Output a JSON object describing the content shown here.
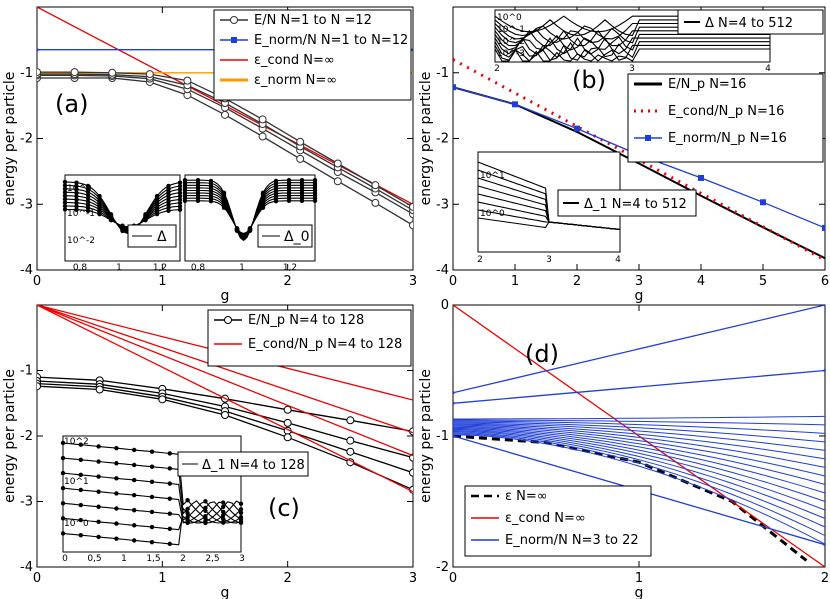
{
  "figure_title": "",
  "chart_data": [
    {
      "type": "line",
      "panel_label": "(a)",
      "xlabel": "g",
      "ylabel": "energy per particle",
      "xlim": [
        0,
        3
      ],
      "ylim": [
        -4,
        0
      ],
      "xticks": [
        "0",
        "1",
        "2",
        "3"
      ],
      "yticks": [
        "-4",
        "-3",
        "-2",
        "-1"
      ],
      "legend": [
        "E/N       N=1 to N =12",
        "E_norm/N N=1 to N=12",
        "ε_cond N=∞",
        "ε_norm N=∞"
      ],
      "series": [
        {
          "name": "ε_cond N=∞",
          "color": "#ee0000",
          "x": [
            0,
            3
          ],
          "y": [
            0,
            -3.0
          ]
        },
        {
          "name": "ε_norm N=∞",
          "color": "#ff9900",
          "x": [
            0,
            3
          ],
          "y": [
            -1.0,
            -1.0
          ]
        },
        {
          "name": "E/N N=1",
          "color": "#333333",
          "x": [
            0,
            0.3,
            0.6,
            0.9,
            1.2,
            1.5,
            1.8,
            2.1,
            2.4,
            2.7,
            3.0
          ],
          "y": [
            -1.08,
            -1.08,
            -1.08,
            -1.14,
            -1.34,
            -1.64,
            -1.97,
            -2.31,
            -2.65,
            -2.98,
            -3.32
          ]
        },
        {
          "name": "E/N N=2",
          "color": "#333333",
          "x": [
            0,
            0.3,
            0.6,
            0.9,
            1.2,
            1.5,
            1.8,
            2.1,
            2.4,
            2.7,
            3.0
          ],
          "y": [
            -1.04,
            -1.04,
            -1.05,
            -1.09,
            -1.25,
            -1.53,
            -1.85,
            -2.18,
            -2.51,
            -2.82,
            -3.15
          ]
        },
        {
          "name": "E/N N=3",
          "color": "#333333",
          "x": [
            0,
            0.3,
            0.6,
            0.9,
            1.2,
            1.5,
            1.8,
            2.1,
            2.4,
            2.7,
            3.0
          ],
          "y": [
            -1.02,
            -1.02,
            -1.03,
            -1.06,
            -1.19,
            -1.46,
            -1.78,
            -2.12,
            -2.44,
            -2.76,
            -3.09
          ]
        },
        {
          "name": "E/N N=12",
          "color": "#333333",
          "x": [
            0,
            0.3,
            0.6,
            0.9,
            1.2,
            1.5,
            1.8,
            2.1,
            2.4,
            2.7,
            3.0
          ],
          "y": [
            -0.99,
            -0.99,
            -1.0,
            -1.02,
            -1.12,
            -1.39,
            -1.71,
            -2.05,
            -2.38,
            -2.71,
            -3.04
          ]
        },
        {
          "name": "E_norm/N",
          "color": "#1f3fd8",
          "x": [
            0,
            3
          ],
          "y": [
            -0.65,
            -0.65
          ]
        }
      ],
      "inset_left": {
        "xticks": [
          "0,8",
          "1",
          "1,2"
        ],
        "yticks": [
          "10^0",
          "10^-1",
          "10^-2"
        ],
        "legend": "Δ"
      },
      "inset_right": {
        "xticks": [
          "0,8",
          "1",
          "1,2"
        ],
        "legend": "Δ_0"
      }
    },
    {
      "type": "line",
      "panel_label": "(b)",
      "xlabel": "g",
      "ylabel": "energy per particle",
      "xlim": [
        0,
        6
      ],
      "ylim": [
        -4,
        0
      ],
      "xticks": [
        "0",
        "1",
        "2",
        "3",
        "4",
        "5",
        "6"
      ],
      "yticks": [
        "-4",
        "-3",
        "-2",
        "-1"
      ],
      "legend": [
        "E/N_p     N=16",
        "E_cond/N_p N=16",
        "E_norm/N_p N=16"
      ],
      "series": [
        {
          "name": "E/N_p N=16",
          "color": "#000000",
          "x": [
            0,
            1,
            2,
            3,
            4,
            5,
            6
          ],
          "y": [
            -1.22,
            -1.48,
            -1.9,
            -2.38,
            -2.87,
            -3.35,
            -3.82
          ]
        },
        {
          "name": "E_cond/N_p N=16",
          "color": "#ee0000",
          "x": [
            0,
            6
          ],
          "y": [
            -0.8,
            -3.85
          ]
        },
        {
          "name": "E_norm/N_p N=16",
          "color": "#1f3fd8",
          "x": [
            0,
            1,
            2,
            3,
            4,
            5,
            6
          ],
          "y": [
            -1.22,
            -1.48,
            -1.85,
            -2.25,
            -2.6,
            -2.97,
            -3.36
          ]
        }
      ],
      "inset_top": {
        "legend": "Δ  N=4 to 512",
        "xticks": [
          "2",
          "3",
          "4"
        ],
        "yticks": [
          "10^0",
          "10^-1",
          "10^-2",
          "10^-3"
        ]
      },
      "inset_mid": {
        "legend": "Δ_1  N=4 to 512",
        "xticks": [
          "2",
          "3",
          "4"
        ],
        "yticks": [
          "10^1",
          "10^0"
        ]
      }
    },
    {
      "type": "line",
      "panel_label": "(c)",
      "xlabel": "g",
      "ylabel": "energy per particle",
      "xlim": [
        0,
        3
      ],
      "ylim": [
        -4,
        0
      ],
      "xticks": [
        "0",
        "1",
        "2",
        "3"
      ],
      "yticks": [
        "-4",
        "-3",
        "-2",
        "-1"
      ],
      "legend": [
        "E/N_p     N=4 to 128",
        "E_cond/N_p N=4 to 128"
      ],
      "series": [
        {
          "name": "E/N_p N=4",
          "color": "#000000",
          "x": [
            0,
            0.5,
            1,
            1.5,
            2,
            2.5,
            3
          ],
          "y": [
            -1.1,
            -1.15,
            -1.28,
            -1.43,
            -1.6,
            -1.76,
            -1.93
          ]
        },
        {
          "name": "E/N_p N=8",
          "color": "#000000",
          "x": [
            0,
            0.5,
            1,
            1.5,
            2,
            2.5,
            3
          ],
          "y": [
            -1.16,
            -1.21,
            -1.35,
            -1.55,
            -1.8,
            -2.07,
            -2.33
          ]
        },
        {
          "name": "E/N_p N=16",
          "color": "#000000",
          "x": [
            0,
            0.5,
            1,
            1.5,
            2,
            2.5,
            3
          ],
          "y": [
            -1.2,
            -1.25,
            -1.4,
            -1.62,
            -1.92,
            -2.24,
            -2.56
          ]
        },
        {
          "name": "E/N_p N=128",
          "color": "#000000",
          "x": [
            0,
            0.5,
            1,
            1.5,
            2,
            2.5,
            3
          ],
          "y": [
            -1.24,
            -1.29,
            -1.44,
            -1.68,
            -2.02,
            -2.4,
            -2.82
          ]
        },
        {
          "name": "E_cond/N_p N=4",
          "color": "#ee0000",
          "x": [
            0,
            3
          ],
          "y": [
            0,
            -1.45
          ]
        },
        {
          "name": "E_cond/N_p N=8",
          "color": "#ee0000",
          "x": [
            0,
            3
          ],
          "y": [
            0,
            -1.95
          ]
        },
        {
          "name": "E_cond/N_p N=16",
          "color": "#ee0000",
          "x": [
            0,
            3
          ],
          "y": [
            0,
            -2.3
          ]
        },
        {
          "name": "E_cond/N_p N=128",
          "color": "#ee0000",
          "x": [
            0,
            3
          ],
          "y": [
            0,
            -2.85
          ]
        }
      ],
      "inset": {
        "legend": "Δ_1  N=4 to 128",
        "xticks": [
          "0",
          "0,5",
          "1",
          "1,5",
          "2",
          "2,5",
          "3"
        ],
        "yticks": [
          "10^2",
          "10^1",
          "10^0"
        ]
      }
    },
    {
      "type": "line",
      "panel_label": "(d)",
      "xlabel": "g",
      "ylabel": "energy per particle",
      "xlim": [
        0,
        2
      ],
      "ylim": [
        -2,
        0
      ],
      "xticks": [
        "0",
        "1",
        "2"
      ],
      "yticks": [
        "-2",
        "-1",
        "0"
      ],
      "legend": [
        "ε           N=∞",
        "ε_cond     N=∞",
        "E_norm/N  N=3 to 22"
      ],
      "series": [
        {
          "name": "ε N=∞",
          "color": "#000000",
          "x": [
            0,
            0.5,
            1.0,
            1.5,
            1.9
          ],
          "y": [
            -1.0,
            -1.05,
            -1.2,
            -1.5,
            -1.95
          ]
        },
        {
          "name": "ε_cond N=∞",
          "color": "#ee0000",
          "x": [
            0,
            2
          ],
          "y": [
            0,
            -2.0
          ]
        },
        {
          "name": "E_norm/N N=3",
          "color": "#1f3fd8",
          "x": [
            0,
            2
          ],
          "y": [
            -0.67,
            0.0
          ]
        },
        {
          "name": "E_norm/N N=4",
          "color": "#1f3fd8",
          "x": [
            0,
            2
          ],
          "y": [
            -0.75,
            -0.5
          ]
        },
        {
          "name": "E_norm/N N=22",
          "color": "#1f3fd8",
          "x": [
            0,
            2
          ],
          "y": [
            -1.0,
            -1.83
          ]
        }
      ]
    }
  ]
}
